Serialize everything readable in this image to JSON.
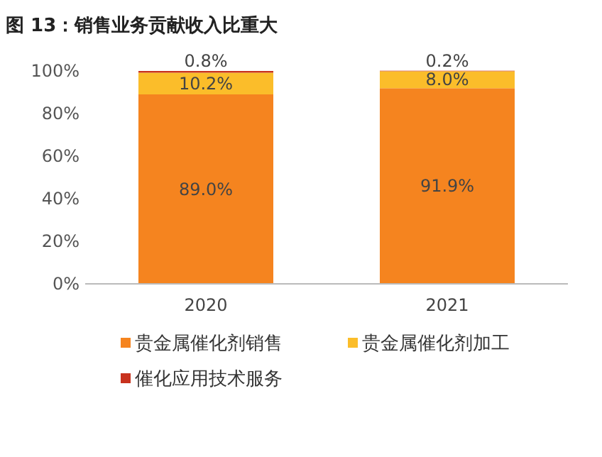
{
  "chart_data": {
    "type": "bar",
    "stacked": true,
    "title": "图 13：销售业务贡献收入比重大",
    "categories": [
      "2020",
      "2021"
    ],
    "series": [
      {
        "name": "贵金属催化剂销售",
        "color": "#f5841f",
        "values": [
          89.0,
          91.9
        ],
        "value_labels": [
          "89.0%",
          "91.9%"
        ]
      },
      {
        "name": "贵金属催化剂加工",
        "color": "#fbbd2a",
        "values": [
          10.2,
          8.0
        ],
        "value_labels": [
          "10.2%",
          "8.0%"
        ]
      },
      {
        "name": "催化应用技术服务",
        "color": "#c8321e",
        "values": [
          0.8,
          0.2
        ],
        "value_labels": [
          "0.8%",
          "0.2%"
        ]
      }
    ],
    "ylim": [
      0,
      100
    ],
    "yticks": [
      {
        "value": 0,
        "label": "0%"
      },
      {
        "value": 20,
        "label": "20%"
      },
      {
        "value": 40,
        "label": "40%"
      },
      {
        "value": 60,
        "label": "60%"
      },
      {
        "value": 80,
        "label": "80%"
      },
      {
        "value": 100,
        "label": "100%"
      }
    ],
    "legend": "bottom",
    "grid": false
  }
}
